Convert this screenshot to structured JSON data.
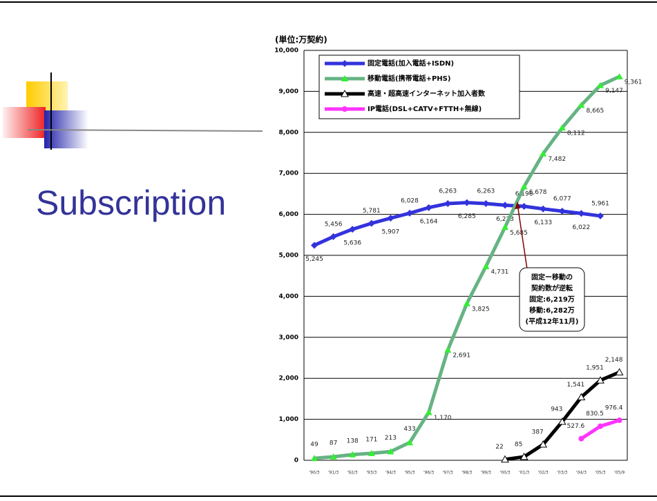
{
  "slide": {
    "title": "Subscription"
  },
  "chart_data": {
    "type": "line",
    "unit_label": "(単位:万契約)",
    "categories": [
      "'90/3",
      "'91/3",
      "'92/3",
      "'93/3",
      "'94/3",
      "'95/3",
      "'96/3",
      "'97/3",
      "'98/3",
      "'99/3",
      "'00/3",
      "'01/3",
      "'02/3",
      "'03/3",
      "'04/3",
      "'05/3",
      "'05/9"
    ],
    "ylim": [
      0,
      10000
    ],
    "yticks": [
      0,
      {
        "value": 1000,
        "label": "1,000"
      },
      {
        "value": 2000,
        "label": "2,000"
      },
      {
        "value": 3000,
        "label": "3,000"
      },
      {
        "value": 4000,
        "label": "4,000"
      },
      {
        "value": 5000,
        "label": "5,000"
      },
      {
        "value": 6000,
        "label": "6,000"
      },
      {
        "value": 7000,
        "label": "7,000"
      },
      {
        "value": 8000,
        "label": "8,000"
      },
      {
        "value": 9000,
        "label": "9,000"
      },
      {
        "value": 10000,
        "label": "10,000"
      }
    ],
    "grid": true,
    "series": [
      {
        "name": "固定電話(加入電話+ISDN)",
        "color": "#3333dd",
        "marker": "diamond",
        "values": [
          5245,
          5456,
          5636,
          5781,
          5907,
          6028,
          6164,
          6263,
          6285,
          6263,
          6223,
          6196,
          6133,
          6077,
          6022,
          5961,
          null
        ],
        "value_labels": [
          "5,245",
          "5,456",
          "5,636",
          "5,781",
          "5,907",
          "6,028",
          "6,164",
          "6,263",
          "6,285",
          "6,263",
          "6,223",
          "6,196",
          "6,133",
          "6,077",
          "6,022",
          "5,961",
          null
        ]
      },
      {
        "name": "移動電話(携帯電話+PHS)",
        "color": "#66b383",
        "marker": "triangle",
        "values": [
          49,
          87,
          138,
          171,
          213,
          433,
          1170,
          2691,
          3825,
          4731,
          5685,
          6678,
          7482,
          8112,
          8665,
          9147,
          9361
        ],
        "value_labels": [
          "49",
          "87",
          "138",
          "171",
          "213",
          "433",
          "1,170",
          "2,691",
          "3,825",
          "4,731",
          "5,685",
          "6,678",
          "7,482",
          "8,112",
          "8,665",
          "9,147",
          "9,361"
        ]
      },
      {
        "name": "高速・超高速インターネット加入者数",
        "color": "#000000",
        "marker": "triangle",
        "values": [
          null,
          null,
          null,
          null,
          null,
          null,
          null,
          null,
          null,
          null,
          22,
          85,
          387,
          943,
          1541,
          1951,
          2148
        ],
        "value_labels": [
          null,
          null,
          null,
          null,
          null,
          null,
          null,
          null,
          null,
          null,
          "22",
          "85",
          "387",
          "943",
          "1,541",
          "1,951",
          "2,148"
        ]
      },
      {
        "name": "IP電話(DSL+CATV+FTTH+無線)",
        "color": "#ff33ff",
        "marker": "circle",
        "values": [
          null,
          null,
          null,
          null,
          null,
          null,
          null,
          null,
          null,
          null,
          null,
          null,
          null,
          null,
          527.6,
          830.5,
          976.4
        ]
      }
    ],
    "annotation": [
      "固定ー移動の",
      "契約数が逆転",
      "固定:6,219万",
      "移動:6,282万",
      "(平成12年11月)"
    ]
  }
}
